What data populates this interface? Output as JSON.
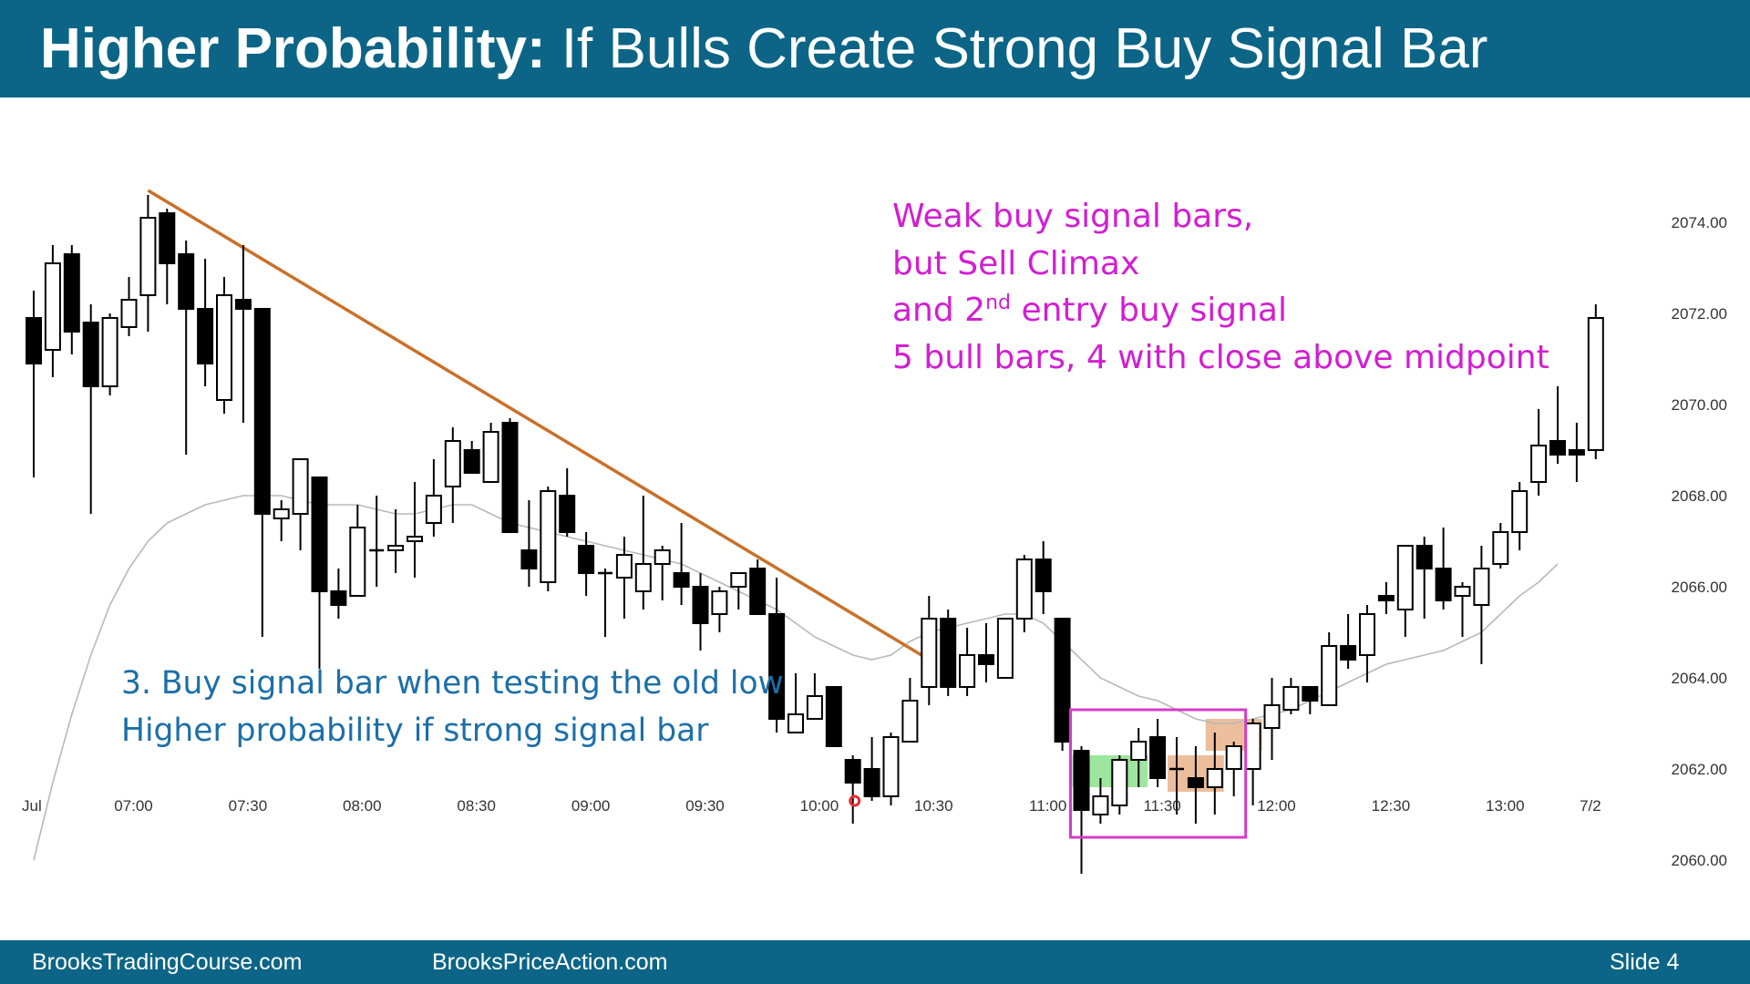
{
  "header": {
    "title_bold": "Higher Probability:",
    "title_rest": " If Bulls Create Strong Buy Signal Bar"
  },
  "footer": {
    "site1": "BrooksTradingCourse.com",
    "site2": "BrooksPriceAction.com",
    "slide": "Slide  4"
  },
  "colors": {
    "header_bg": "#0c6586",
    "trendline": "#c8702a",
    "ema": "#b8b8b8",
    "annotation_magenta": "#d21ed2",
    "annotation_blue": "#1c6fa8",
    "box": "#d63bc9",
    "green_highlight": "#5cd65c",
    "orange_highlight": "#e0935a",
    "signal_dot": "#e03030"
  },
  "annotations": {
    "top": {
      "line1": "Weak buy signal bars,",
      "line2": "but Sell Climax",
      "line3_pre": "and 2",
      "line3_sup": "nd",
      "line3_post": " entry buy signal",
      "line4": "5 bull bars, 4 with close above midpoint"
    },
    "bottom": {
      "line1": "3. Buy signal bar when testing the old low",
      "line2": "Higher probability if strong signal bar"
    }
  },
  "chart_data": {
    "type": "candlestick",
    "title": "",
    "xlabel": "",
    "ylabel": "",
    "ylim": [
      2059.2,
      2075.2
    ],
    "yticks": [
      "2074.00",
      "2072.00",
      "2070.00",
      "2068.00",
      "2066.00",
      "2064.00",
      "2062.00",
      "2060.00"
    ],
    "ytick_values": [
      2074,
      2072,
      2070,
      2068,
      2066,
      2064,
      2062,
      2060
    ],
    "xticks": [
      "Jul",
      "07:00",
      "07:30",
      "08:00",
      "08:30",
      "09:00",
      "09:30",
      "10:00",
      "10:30",
      "11:00",
      "11:30",
      "12:00",
      "12:30",
      "13:00",
      "7/2"
    ],
    "xtick_bar_index": [
      0,
      5,
      11,
      17,
      23,
      29,
      35,
      41,
      47,
      53,
      59,
      65,
      71,
      77,
      81
    ],
    "grid": false,
    "series": [
      {
        "kind": "candles",
        "values": [
          [
            2071.9,
            2072.5,
            2068.4,
            2070.9
          ],
          [
            2071.2,
            2073.5,
            2070.6,
            2073.1
          ],
          [
            2073.3,
            2073.5,
            2071.1,
            2071.6
          ],
          [
            2071.8,
            2072.2,
            2067.6,
            2070.4
          ],
          [
            2070.4,
            2072.0,
            2070.2,
            2071.9
          ],
          [
            2071.7,
            2072.8,
            2071.5,
            2072.3
          ],
          [
            2072.4,
            2074.6,
            2071.6,
            2074.1
          ],
          [
            2074.2,
            2074.3,
            2072.2,
            2073.1
          ],
          [
            2073.3,
            2073.6,
            2068.9,
            2072.1
          ],
          [
            2072.1,
            2073.2,
            2070.4,
            2070.9
          ],
          [
            2070.1,
            2072.8,
            2069.8,
            2072.4
          ],
          [
            2072.3,
            2073.5,
            2069.6,
            2072.1
          ],
          [
            2072.1,
            2072.1,
            2064.9,
            2067.6
          ],
          [
            2067.5,
            2067.9,
            2067.0,
            2067.7
          ],
          [
            2067.6,
            2068.7,
            2066.8,
            2068.8
          ],
          [
            2068.4,
            2068.4,
            2064.2,
            2065.9
          ],
          [
            2065.9,
            2066.4,
            2065.3,
            2065.6
          ],
          [
            2065.8,
            2067.8,
            2066.1,
            2067.3
          ],
          [
            2066.8,
            2068.0,
            2066.0,
            2066.8
          ],
          [
            2066.8,
            2067.7,
            2066.3,
            2066.9
          ],
          [
            2067.0,
            2068.3,
            2066.2,
            2067.1
          ],
          [
            2067.4,
            2068.8,
            2067.1,
            2068.0
          ],
          [
            2068.2,
            2069.5,
            2067.4,
            2069.2
          ],
          [
            2069.0,
            2069.2,
            2068.5,
            2068.5
          ],
          [
            2068.3,
            2069.6,
            2068.3,
            2069.4
          ],
          [
            2069.6,
            2069.7,
            2067.3,
            2067.2
          ],
          [
            2066.8,
            2067.9,
            2066.0,
            2066.4
          ],
          [
            2066.1,
            2068.2,
            2065.9,
            2068.1
          ],
          [
            2068.0,
            2068.6,
            2067.1,
            2067.2
          ],
          [
            2066.9,
            2067.2,
            2065.8,
            2066.3
          ],
          [
            2066.3,
            2066.4,
            2064.9,
            2066.3
          ],
          [
            2066.2,
            2067.1,
            2065.3,
            2066.7
          ],
          [
            2065.9,
            2068.0,
            2065.5,
            2066.5
          ],
          [
            2066.5,
            2066.9,
            2065.7,
            2066.8
          ],
          [
            2066.3,
            2067.4,
            2065.6,
            2066.0
          ],
          [
            2066.0,
            2066.3,
            2064.6,
            2065.2
          ],
          [
            2065.4,
            2066.0,
            2065.0,
            2065.9
          ],
          [
            2066.0,
            2066.3,
            2065.5,
            2066.3
          ],
          [
            2066.4,
            2066.6,
            2065.4,
            2065.4
          ],
          [
            2065.4,
            2066.2,
            2062.8,
            2063.1
          ],
          [
            2062.8,
            2064.1,
            2063.0,
            2063.2
          ],
          [
            2063.1,
            2064.1,
            2063.1,
            2063.6
          ],
          [
            2063.8,
            2063.8,
            2062.5,
            2062.5
          ],
          [
            2062.2,
            2062.3,
            2060.8,
            2061.7
          ],
          [
            2062.0,
            2062.7,
            2061.3,
            2061.4
          ],
          [
            2061.4,
            2062.8,
            2061.2,
            2062.7
          ],
          [
            2062.6,
            2064.0,
            2062.6,
            2063.5
          ],
          [
            2063.8,
            2065.8,
            2063.4,
            2065.3
          ],
          [
            2065.3,
            2065.5,
            2063.6,
            2063.8
          ],
          [
            2063.8,
            2065.1,
            2063.6,
            2064.5
          ],
          [
            2064.5,
            2065.2,
            2063.9,
            2064.3
          ],
          [
            2064.0,
            2064.5,
            2064.0,
            2065.3
          ],
          [
            2065.3,
            2066.7,
            2065.0,
            2066.6
          ],
          [
            2066.6,
            2067.0,
            2065.4,
            2065.9
          ],
          [
            2065.3,
            2065.3,
            2062.4,
            2062.6
          ],
          [
            2062.4,
            2062.5,
            2059.7,
            2061.1
          ],
          [
            2061.0,
            2061.8,
            2060.8,
            2061.4
          ],
          [
            2061.2,
            2062.3,
            2061.0,
            2062.2
          ],
          [
            2062.2,
            2062.9,
            2061.6,
            2062.6
          ],
          [
            2062.7,
            2063.1,
            2061.6,
            2061.8
          ],
          [
            2062.0,
            2062.7,
            2061.0,
            2062.0
          ],
          [
            2061.8,
            2062.5,
            2060.8,
            2061.6
          ],
          [
            2061.6,
            2062.8,
            2061.0,
            2062.0
          ],
          [
            2062.0,
            2062.6,
            2061.4,
            2062.5
          ],
          [
            2062.0,
            2063.1,
            2061.2,
            2063.0
          ],
          [
            2062.9,
            2064.0,
            2062.2,
            2063.4
          ],
          [
            2063.3,
            2064.0,
            2063.2,
            2063.8
          ],
          [
            2063.8,
            2063.8,
            2063.2,
            2063.5
          ],
          [
            2063.4,
            2065.0,
            2063.4,
            2064.7
          ],
          [
            2064.7,
            2065.4,
            2064.2,
            2064.4
          ],
          [
            2064.5,
            2065.6,
            2063.9,
            2065.4
          ],
          [
            2065.8,
            2066.1,
            2065.4,
            2065.7
          ],
          [
            2065.5,
            2066.9,
            2064.9,
            2066.9
          ],
          [
            2066.9,
            2067.1,
            2065.3,
            2066.4
          ],
          [
            2066.4,
            2067.3,
            2065.5,
            2065.7
          ],
          [
            2065.8,
            2066.1,
            2064.9,
            2066.0
          ],
          [
            2065.6,
            2066.9,
            2064.3,
            2066.4
          ],
          [
            2066.5,
            2067.4,
            2066.4,
            2067.2
          ],
          [
            2067.2,
            2068.3,
            2066.8,
            2068.1
          ],
          [
            2068.3,
            2069.9,
            2068.0,
            2069.1
          ],
          [
            2069.2,
            2070.4,
            2068.7,
            2068.9
          ],
          [
            2069.0,
            2069.6,
            2068.3,
            2068.9
          ],
          [
            2069.0,
            2072.2,
            2068.8,
            2071.9
          ]
        ],
        "value_format": "[open, high, low, close]"
      },
      {
        "kind": "ema",
        "values": [
          2060.0,
          2061.7,
          2063.2,
          2064.5,
          2065.6,
          2066.4,
          2067.0,
          2067.4,
          2067.6,
          2067.8,
          2067.9,
          2068.0,
          2068.0,
          2068.0,
          2067.9,
          2067.8,
          2067.8,
          2067.8,
          2067.7,
          2067.6,
          2067.6,
          2067.7,
          2067.8,
          2067.8,
          2067.6,
          2067.4,
          2067.3,
          2067.2,
          2067.1,
          2067.0,
          2066.9,
          2066.8,
          2066.7,
          2066.6,
          2066.5,
          2066.3,
          2066.1,
          2065.9,
          2065.7,
          2065.5,
          2065.2,
          2064.9,
          2064.7,
          2064.5,
          2064.4,
          2064.5,
          2064.8,
          2065.0,
          2065.1,
          2065.2,
          2065.3,
          2065.4,
          2065.4,
          2065.2,
          2064.8,
          2064.4,
          2064.0,
          2063.8,
          2063.6,
          2063.5,
          2063.3,
          2063.1,
          2063.0,
          2063.0,
          2063.1,
          2063.2,
          2063.3,
          2063.5,
          2063.7,
          2063.9,
          2064.1,
          2064.3,
          2064.4,
          2064.5,
          2064.6,
          2064.8,
          2065.0,
          2065.4,
          2065.8,
          2066.1,
          2066.5
        ]
      },
      {
        "kind": "trendline",
        "from": {
          "bar": 6,
          "price": 2074.7
        },
        "to": {
          "bar": 47,
          "price": 2064.4
        }
      }
    ],
    "highlights": {
      "box_bars": [
        55,
        63
      ],
      "box_price": [
        2060.5,
        2063.3
      ],
      "green_bars": [
        55,
        58
      ],
      "green_price": [
        2061.6,
        2062.3
      ],
      "orange1_bars": [
        60,
        62
      ],
      "orange1_price": [
        2061.5,
        2062.3
      ],
      "orange2_bars": [
        62,
        64
      ],
      "orange2_price": [
        2062.4,
        2063.1
      ],
      "signal_dot": {
        "bar": 43,
        "price": 2061.3
      }
    }
  }
}
